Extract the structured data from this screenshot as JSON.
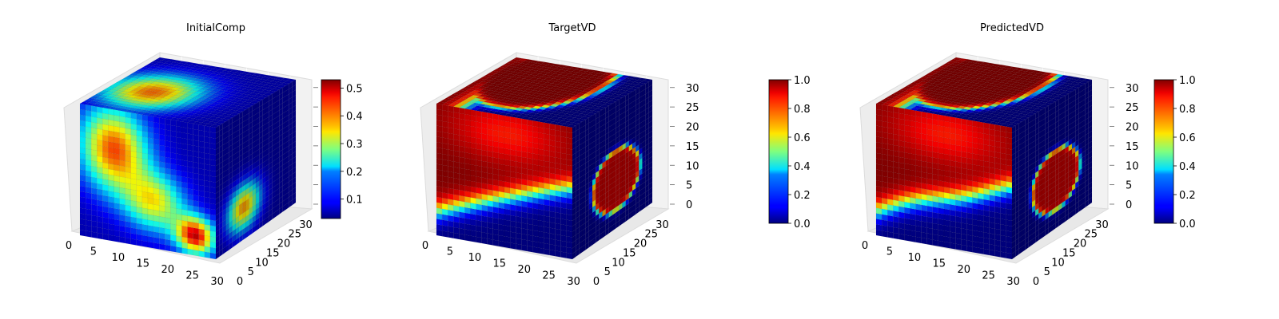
{
  "chart_data": [
    {
      "type": "voxel3d",
      "title": "InitialComp",
      "axes": {
        "x_ticks": [
          "0",
          "5",
          "10",
          "15",
          "20",
          "25",
          "30"
        ],
        "y_ticks": [
          "0",
          "5",
          "10",
          "15",
          "20",
          "25",
          "30"
        ],
        "z_ticks": [
          "",
          "",
          "",
          "",
          "",
          "",
          ""
        ],
        "xlim": [
          0,
          32
        ],
        "ylim": [
          0,
          32
        ],
        "zlim": [
          0,
          32
        ],
        "grid": true
      },
      "colormap": "jet",
      "colorbar": {
        "range": [
          0.03,
          0.53
        ],
        "ticks": [
          "0.1",
          "0.2",
          "0.3",
          "0.4",
          "0.5"
        ],
        "tick_values": [
          0.1,
          0.2,
          0.3,
          0.4,
          0.5
        ]
      },
      "field": "diffuse"
    },
    {
      "type": "voxel3d",
      "title": "TargetVD",
      "axes": {
        "x_ticks": [
          "0",
          "5",
          "10",
          "15",
          "20",
          "25",
          "30"
        ],
        "y_ticks": [
          "0",
          "5",
          "10",
          "15",
          "20",
          "25",
          "30"
        ],
        "z_ticks": [
          "0",
          "5",
          "10",
          "15",
          "20",
          "25",
          "30"
        ],
        "xlim": [
          0,
          32
        ],
        "ylim": [
          0,
          32
        ],
        "zlim": [
          0,
          32
        ],
        "grid": true
      },
      "colormap": "jet",
      "colorbar": {
        "range": [
          0.0,
          1.0
        ],
        "ticks": [
          "0.0",
          "0.2",
          "0.4",
          "0.6",
          "0.8",
          "1.0"
        ],
        "tick_values": [
          0,
          0.2,
          0.4,
          0.6,
          0.8,
          1.0
        ]
      },
      "field": "binary"
    },
    {
      "type": "voxel3d",
      "title": "PredictedVD",
      "axes": {
        "x_ticks": [
          "0",
          "5",
          "10",
          "15",
          "20",
          "25",
          "30"
        ],
        "y_ticks": [
          "0",
          "5",
          "10",
          "15",
          "20",
          "25",
          "30"
        ],
        "z_ticks": [
          "0",
          "5",
          "10",
          "15",
          "20",
          "25",
          "30"
        ],
        "xlim": [
          0,
          32
        ],
        "ylim": [
          0,
          32
        ],
        "zlim": [
          0,
          32
        ],
        "grid": true
      },
      "colormap": "jet",
      "colorbar": {
        "range": [
          0.0,
          1.0
        ],
        "ticks": [
          "0.0",
          "0.2",
          "0.4",
          "0.6",
          "0.8",
          "1.0"
        ],
        "tick_values": [
          0,
          0.2,
          0.4,
          0.6,
          0.8,
          1.0
        ]
      },
      "field": "binary"
    }
  ]
}
